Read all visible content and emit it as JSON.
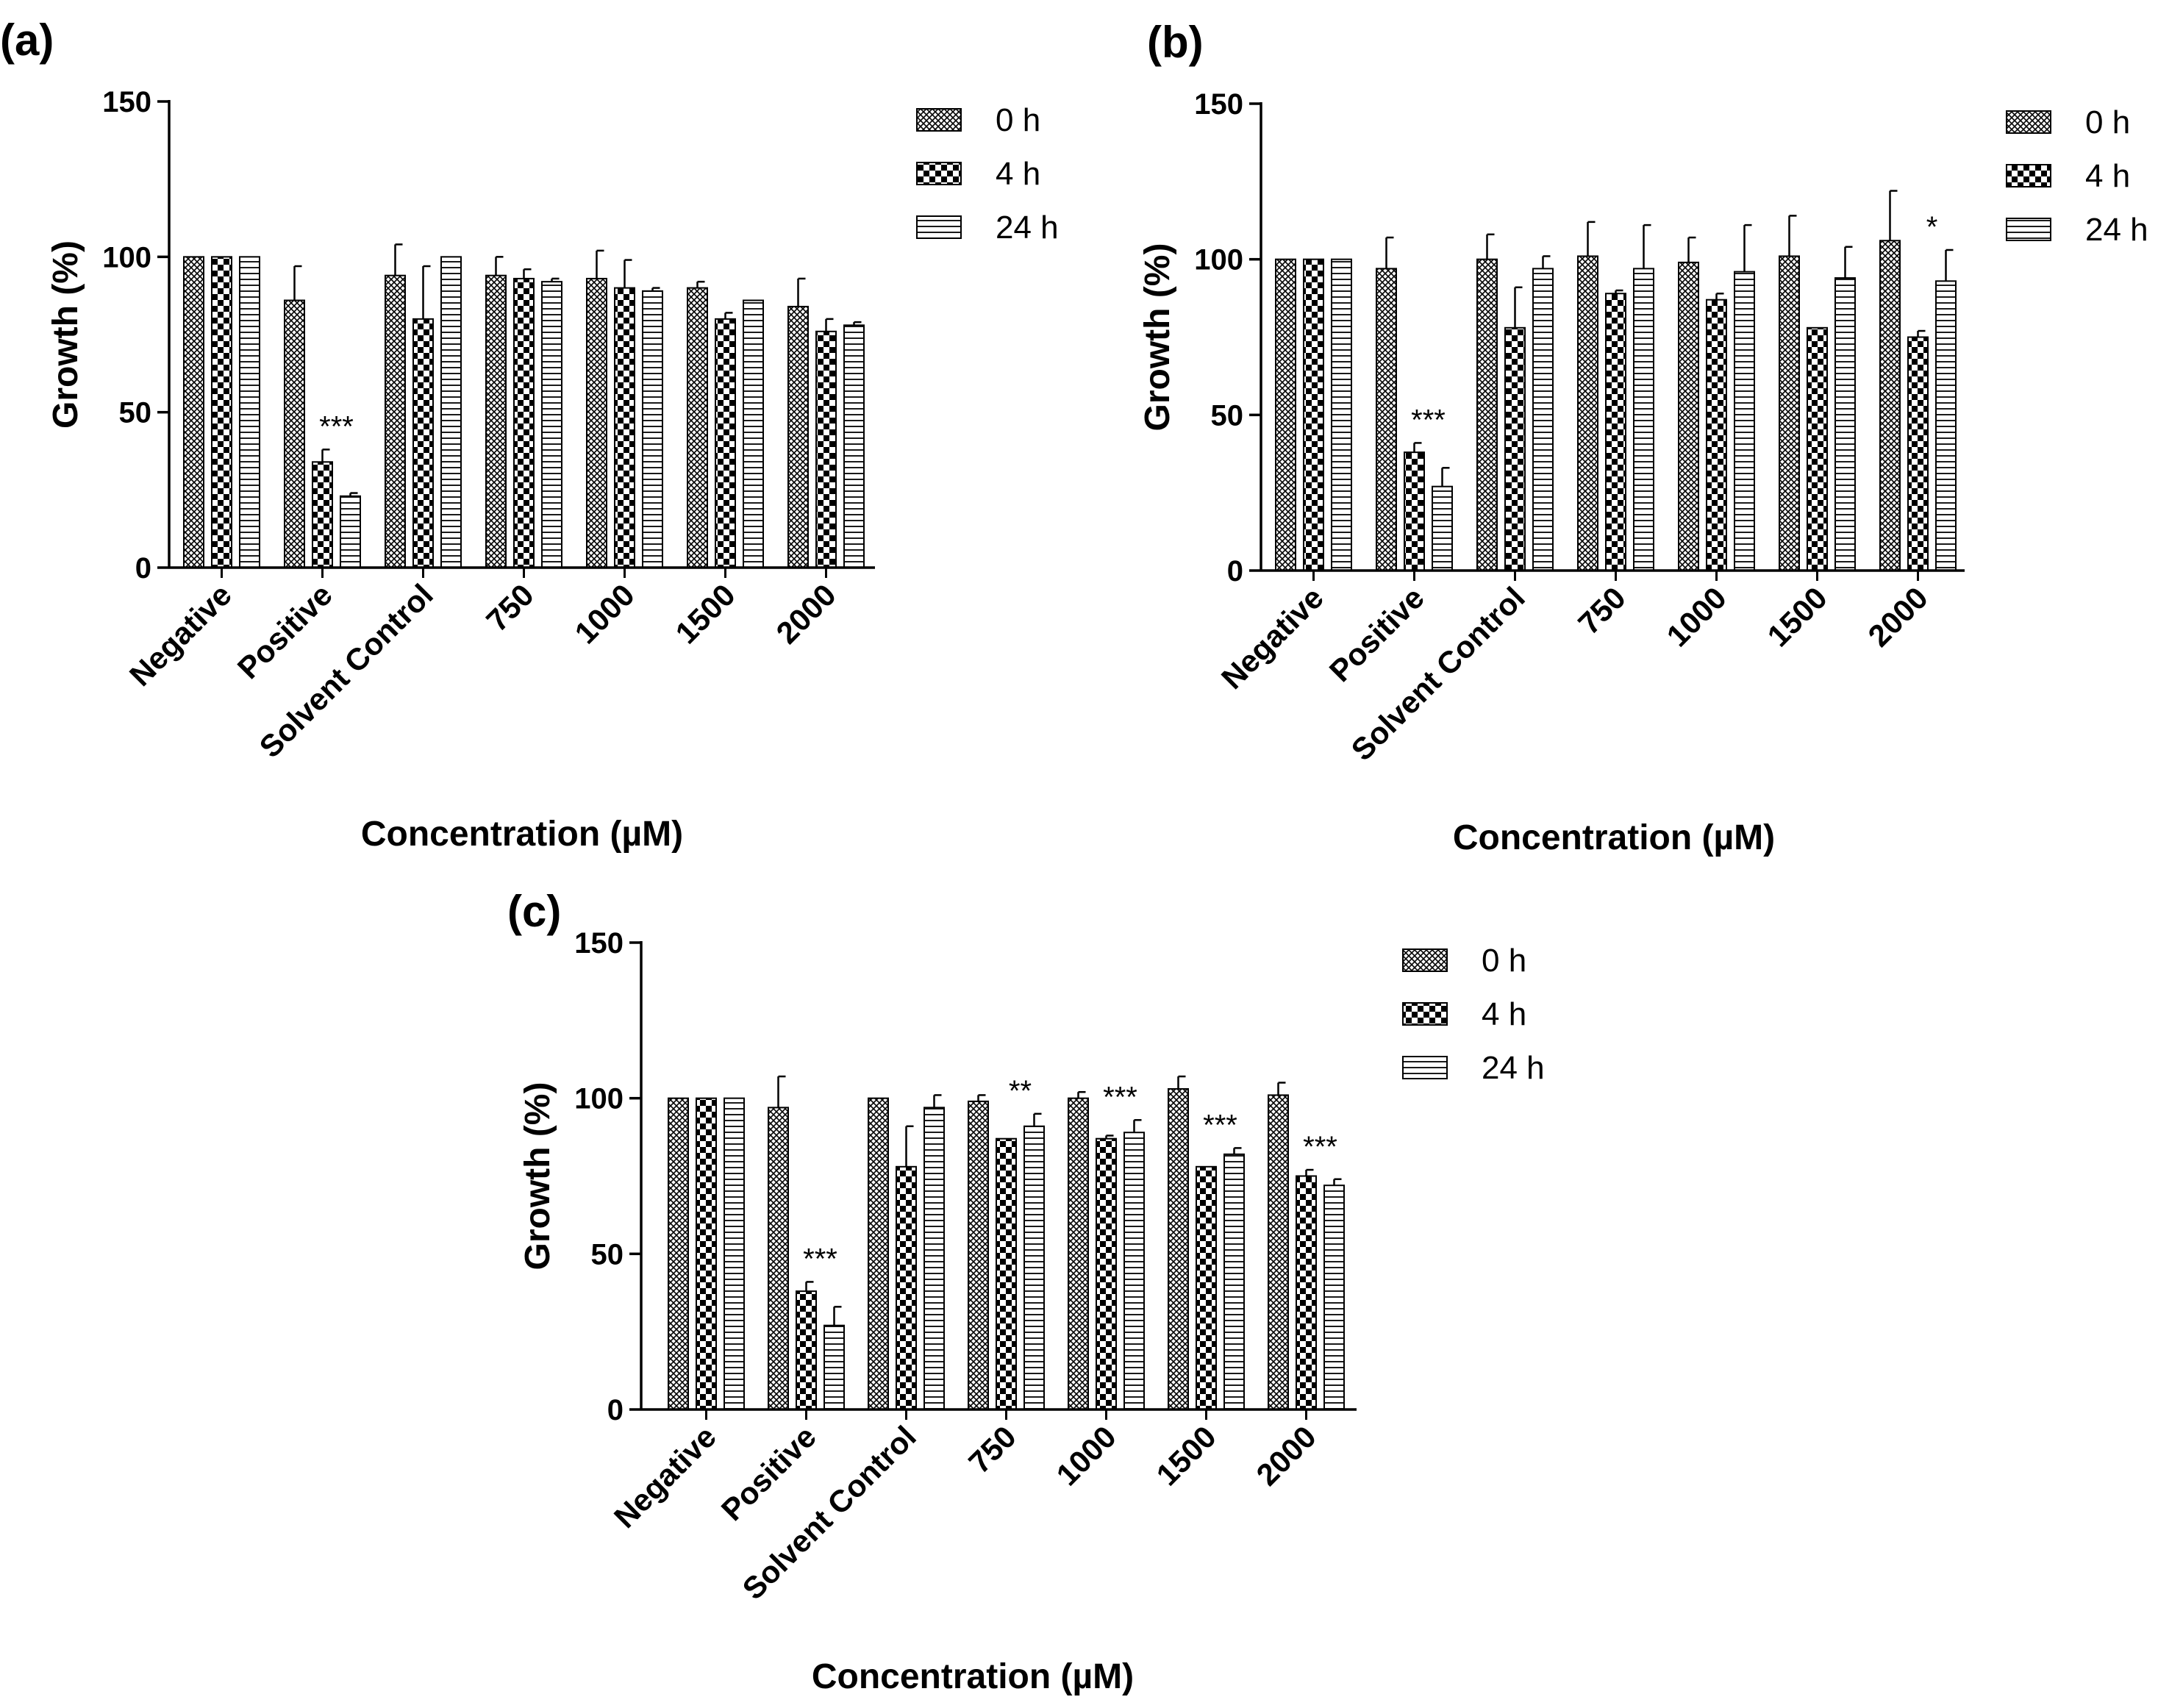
{
  "chart_data": [
    {
      "panel_label": "(a)",
      "type": "bar",
      "xlabel": "Concentration (µM)",
      "ylabel": "Growth (%)",
      "ylim": [
        0,
        150
      ],
      "yticks": [
        "0",
        "50",
        "100",
        "150"
      ],
      "categories": [
        "Negative",
        "Positive",
        "Solvent Control",
        "750",
        "1000",
        "1500",
        "2000"
      ],
      "series": [
        {
          "name": "0 h",
          "pattern": "crosshatch",
          "values": [
            100,
            86,
            94,
            94,
            93,
            90,
            84
          ],
          "errors": [
            0,
            11,
            10,
            6,
            9,
            2,
            9
          ]
        },
        {
          "name": "4 h",
          "pattern": "checker",
          "values": [
            100,
            34,
            80,
            93,
            90,
            80,
            76
          ],
          "errors": [
            0,
            4,
            17,
            3,
            9,
            2,
            4
          ]
        },
        {
          "name": "24 h",
          "pattern": "hlines",
          "values": [
            100,
            23,
            100,
            92,
            89,
            86,
            78
          ],
          "errors": [
            0,
            1,
            0,
            1,
            1,
            0,
            1
          ]
        }
      ],
      "annotations": [
        {
          "category": "Positive",
          "text": "***"
        }
      ]
    },
    {
      "panel_label": "(b)",
      "type": "bar",
      "xlabel": "Concentration (µM)",
      "ylabel": "Growth (%)",
      "ylim": [
        0,
        150
      ],
      "yticks": [
        "0",
        "50",
        "100",
        "150"
      ],
      "categories": [
        "Negative",
        "Positive",
        "Solvent Control",
        "750",
        "1000",
        "1500",
        "2000"
      ],
      "series": [
        {
          "name": "0 h",
          "pattern": "crosshatch",
          "values": [
            100,
            97,
            100,
            101,
            99,
            101,
            106
          ],
          "errors": [
            0,
            10,
            8,
            11,
            8,
            13,
            16
          ]
        },
        {
          "name": "4 h",
          "pattern": "checker",
          "values": [
            100,
            38,
            78,
            89,
            87,
            78,
            75
          ],
          "errors": [
            0,
            3,
            13,
            1,
            2,
            0,
            2
          ]
        },
        {
          "name": "24 h",
          "pattern": "hlines",
          "values": [
            100,
            27,
            97,
            97,
            96,
            94,
            93
          ],
          "errors": [
            0,
            6,
            4,
            14,
            15,
            10,
            10
          ]
        }
      ],
      "annotations": [
        {
          "category": "Positive",
          "text": "***"
        },
        {
          "category": "2000",
          "text": "*"
        }
      ]
    },
    {
      "panel_label": "(c)",
      "type": "bar",
      "xlabel": "Concentration (µM)",
      "ylabel": "Growth (%)",
      "ylim": [
        0,
        150
      ],
      "yticks": [
        "0",
        "50",
        "100",
        "150"
      ],
      "categories": [
        "Negative",
        "Positive",
        "Solvent Control",
        "750",
        "1000",
        "1500",
        "2000"
      ],
      "series": [
        {
          "name": "0 h",
          "pattern": "crosshatch",
          "values": [
            100,
            97,
            100,
            99,
            100,
            103,
            101
          ],
          "errors": [
            0,
            10,
            0,
            2,
            2,
            4,
            4
          ]
        },
        {
          "name": "4 h",
          "pattern": "checker",
          "values": [
            100,
            38,
            78,
            87,
            87,
            78,
            75
          ],
          "errors": [
            0,
            3,
            13,
            0,
            1,
            0,
            2
          ]
        },
        {
          "name": "24 h",
          "pattern": "hlines",
          "values": [
            100,
            27,
            97,
            91,
            89,
            82,
            72
          ],
          "errors": [
            0,
            6,
            4,
            4,
            4,
            2,
            2
          ]
        }
      ],
      "annotations": [
        {
          "category": "Positive",
          "text": "***"
        },
        {
          "category": "750",
          "text": "**"
        },
        {
          "category": "1000",
          "text": "***"
        },
        {
          "category": "1500",
          "text": "***"
        },
        {
          "category": "2000",
          "text": "***"
        }
      ]
    }
  ]
}
